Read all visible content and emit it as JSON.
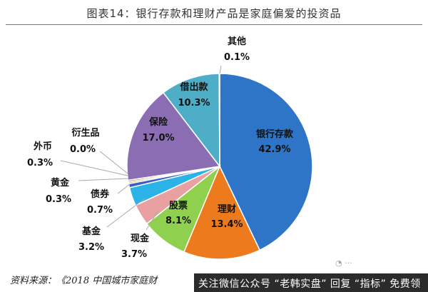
{
  "title": "图表14：银行存款和理财产品是家庭偏爱的投资品",
  "source": "资料来源：《2018 中国城市家庭财",
  "banner": "关注微信公众号 “老韩实盘” 回复 “指标” 免费领",
  "colors": {
    "deposit": "#2e75c7",
    "wealth": "#ed7a1c",
    "stock": "#8fd14f",
    "cash": "#e8a0a0",
    "fund": "#2bb3e8",
    "bond": "#3a5fcd",
    "gold": "#d9b23a",
    "forex": "#c08080",
    "deriv": "#7bb",
    "insurance": "#8a6db3",
    "loan": "#4eaec8",
    "other": "#999999"
  },
  "chart_data": {
    "type": "pie",
    "title": "图表14：银行存款和理财产品是家庭偏爱的投资品",
    "slices": [
      {
        "name": "银行存款",
        "value": 42.9,
        "label": "42.9%"
      },
      {
        "name": "理财",
        "value": 13.4,
        "label": "13.4%"
      },
      {
        "name": "股票",
        "value": 8.1,
        "label": "8.1%"
      },
      {
        "name": "现金",
        "value": 3.7,
        "label": "3.7%"
      },
      {
        "name": "基金",
        "value": 3.2,
        "label": "3.2%"
      },
      {
        "name": "债券",
        "value": 0.7,
        "label": "0.7%"
      },
      {
        "name": "黄金",
        "value": 0.3,
        "label": "0.3%"
      },
      {
        "name": "外币",
        "value": 0.3,
        "label": "0.3%"
      },
      {
        "name": "衍生品",
        "value": 0.0,
        "label": "0.0%"
      },
      {
        "name": "保险",
        "value": 17.0,
        "label": "17.0%"
      },
      {
        "name": "借出款",
        "value": 10.3,
        "label": "10.3%"
      },
      {
        "name": "其他",
        "value": 0.1,
        "label": "0.1%"
      }
    ]
  }
}
